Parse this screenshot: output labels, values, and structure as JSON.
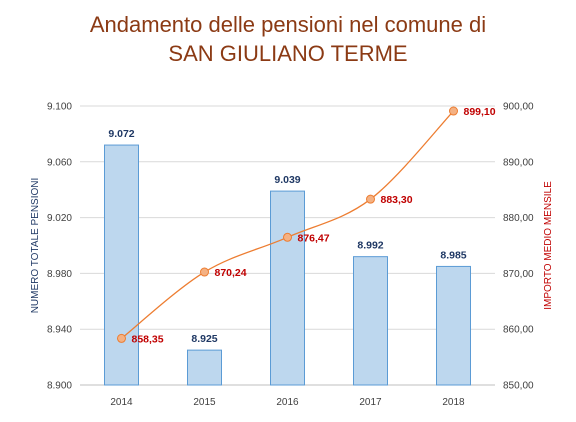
{
  "chart_data": {
    "type": "bar",
    "title_line1": "Andamento delle pensioni nel comune di",
    "title_line2": "SAN GIULIANO TERME",
    "categories": [
      "2014",
      "2015",
      "2016",
      "2017",
      "2018"
    ],
    "series": [
      {
        "type": "bar",
        "axis": "left",
        "values": [
          9072,
          8925,
          9039,
          8992,
          8985
        ],
        "value_labels": [
          "9.072",
          "8.925",
          "9.039",
          "8.992",
          "8.985"
        ],
        "color": "#bdd7ee",
        "border_color": "#5b9bd5"
      },
      {
        "type": "line",
        "axis": "right",
        "smooth": true,
        "values": [
          858.35,
          870.24,
          876.47,
          883.3,
          899.1
        ],
        "value_labels": [
          "858,35",
          "870,24",
          "876,47",
          "883,30",
          "899,10"
        ],
        "color": "#ed7d31",
        "marker_fill": "#f4b183"
      }
    ],
    "y_left": {
      "label": "NUMERO TOTALE PENSIONI",
      "label_color": "#1f3864",
      "ylim": [
        8900,
        9100
      ],
      "ticks": [
        8900,
        8940,
        8980,
        9020,
        9060,
        9100
      ],
      "tick_labels": [
        "8.900",
        "8.940",
        "8.980",
        "9.020",
        "9.060",
        "9.100"
      ]
    },
    "y_right": {
      "label": "IMPORTO MEDIO MENSILE",
      "label_color": "#c00000",
      "ylim": [
        850,
        900
      ],
      "ticks": [
        850,
        860,
        870,
        880,
        890,
        900
      ],
      "tick_labels": [
        "850,00",
        "860,00",
        "870,00",
        "880,00",
        "890,00",
        "900,00"
      ]
    },
    "grid": true,
    "legend": "none"
  }
}
